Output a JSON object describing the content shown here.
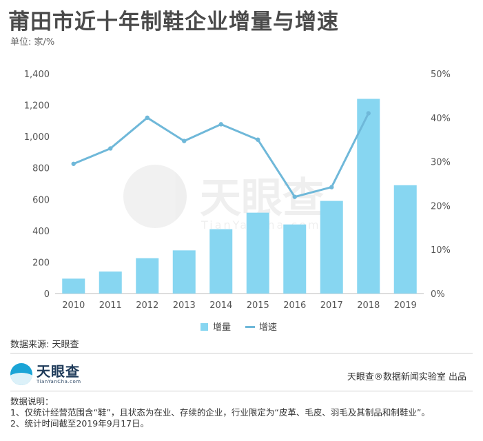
{
  "title": "莆田市近十年制鞋企业增量与增速",
  "unit_label": "单位: 家/%",
  "watermark": {
    "cn": "天眼查",
    "en": "TianYanCha.com"
  },
  "source": "数据来源: 天眼查",
  "logo": {
    "cn": "天眼查",
    "en": "TianYanCha.com"
  },
  "credit": "天眼查®数据新闻实验室 出品",
  "notes": {
    "heading": "数据说明：",
    "items": [
      "1、仅统计经营范围含“鞋”，且状态为在业、存续的企业，行业限定为“皮革、毛皮、羽毛及其制品和制鞋业”。",
      "2、统计时间截至2019年9月17日。"
    ]
  },
  "colors": {
    "bar": "#87d6f1",
    "line": "#6fb8d9",
    "axis_text": "#555555"
  },
  "chart_data": {
    "type": "bar+line",
    "categories": [
      "2010",
      "2011",
      "2012",
      "2013",
      "2014",
      "2015",
      "2016",
      "2017",
      "2018",
      "2019"
    ],
    "series": [
      {
        "name": "增量",
        "type": "bar",
        "axis": "left",
        "values": [
          95,
          140,
          225,
          275,
          410,
          515,
          440,
          590,
          1240,
          690
        ]
      },
      {
        "name": "增速",
        "type": "line",
        "axis": "right",
        "values": [
          29.5,
          33.0,
          40.0,
          34.7,
          38.5,
          35.0,
          22.0,
          24.2,
          41.0,
          null
        ]
      }
    ],
    "y_left": {
      "min": 0,
      "max": 1400,
      "ticks": [
        "0",
        "200",
        "400",
        "600",
        "800",
        "1,000",
        "1,200",
        "1,400"
      ]
    },
    "y_right": {
      "min": 0,
      "max": 50,
      "ticks": [
        "0%",
        "10%",
        "20%",
        "30%",
        "40%",
        "50%"
      ]
    },
    "legend": [
      {
        "label": "增量",
        "kind": "bar"
      },
      {
        "label": "增速",
        "kind": "line"
      }
    ],
    "legend_position": "bottom-center",
    "grid": false
  }
}
